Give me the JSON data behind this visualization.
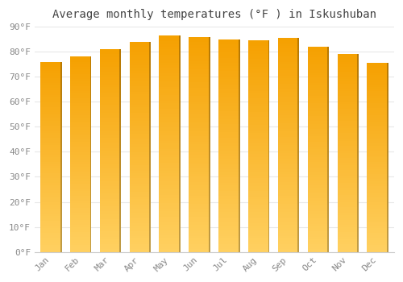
{
  "title": "Average monthly temperatures (°F ) in Iskushuban",
  "months": [
    "Jan",
    "Feb",
    "Mar",
    "Apr",
    "May",
    "Jun",
    "Jul",
    "Aug",
    "Sep",
    "Oct",
    "Nov",
    "Dec"
  ],
  "values": [
    76,
    78,
    81,
    84,
    86.5,
    86,
    85,
    84.5,
    85.5,
    82,
    79,
    75.5
  ],
  "ylim": [
    0,
    90
  ],
  "yticks": [
    0,
    10,
    20,
    30,
    40,
    50,
    60,
    70,
    80,
    90
  ],
  "bar_color_bottom": "#FFD060",
  "bar_color_top": "#F5A000",
  "bar_shadow_color": "#C07800",
  "background_color": "#FFFFFF",
  "grid_color": "#E8E8E8",
  "title_fontsize": 10,
  "tick_fontsize": 8,
  "font_family": "monospace"
}
